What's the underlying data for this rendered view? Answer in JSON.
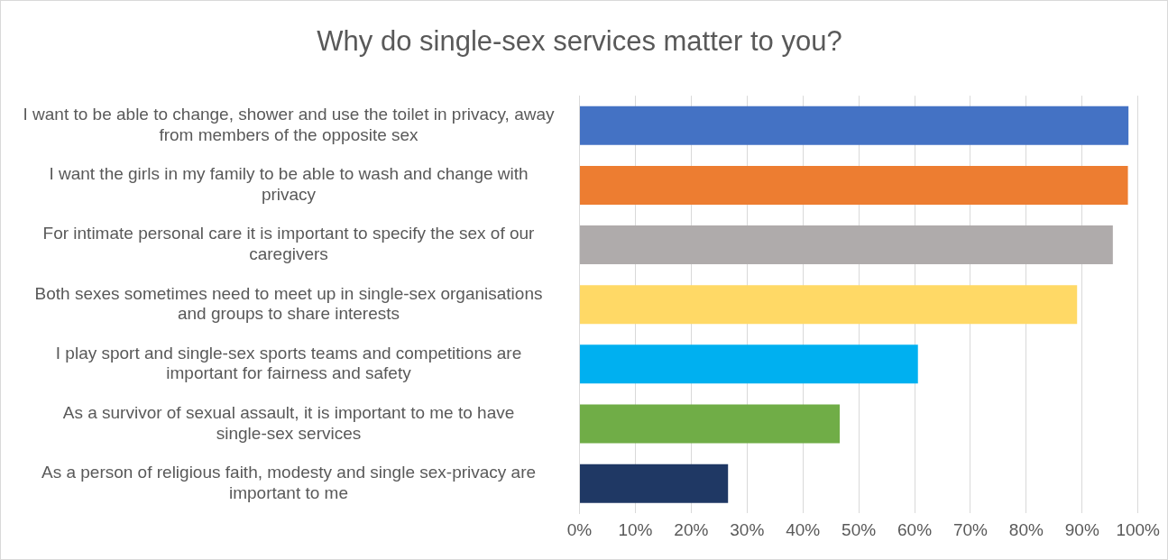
{
  "chart_data": {
    "type": "bar",
    "orientation": "horizontal",
    "title": "Why do single-sex services matter to you?",
    "categories": [
      "I want to be able to change, shower and use the toilet in privacy, away from members of the opposite sex",
      "I want the girls in my family to be able to wash and change with privacy",
      "For intimate personal care it is important to specify the sex of our caregivers",
      "Both sexes sometimes need to meet up in single-sex organisations and groups to share interests",
      "I play sport and single-sex sports teams and competitions are important for fairness and safety",
      "As a survivor of sexual assault, it is important to me to have single-sex services",
      "As a person of religious faith, modesty and single sex-privacy are important to me"
    ],
    "values": [
      98.3,
      98.2,
      95.5,
      89.1,
      60.6,
      46.6,
      26.6
    ],
    "colors": [
      "#4472c4",
      "#ed7d31",
      "#afabab",
      "#ffd966",
      "#00b0f0",
      "#70ad47",
      "#1f3864"
    ],
    "xlim": [
      0,
      100
    ],
    "xticks": [
      {
        "value": 0,
        "label": "0%"
      },
      {
        "value": 10,
        "label": "10%"
      },
      {
        "value": 20,
        "label": "20%"
      },
      {
        "value": 30,
        "label": "30%"
      },
      {
        "value": 40,
        "label": "40%"
      },
      {
        "value": 50,
        "label": "50%"
      },
      {
        "value": 60,
        "label": "60%"
      },
      {
        "value": 70,
        "label": "70%"
      },
      {
        "value": 80,
        "label": "80%"
      },
      {
        "value": 90,
        "label": "90%"
      },
      {
        "value": 100,
        "label": "100%"
      }
    ],
    "grid": "x",
    "legend": false
  }
}
